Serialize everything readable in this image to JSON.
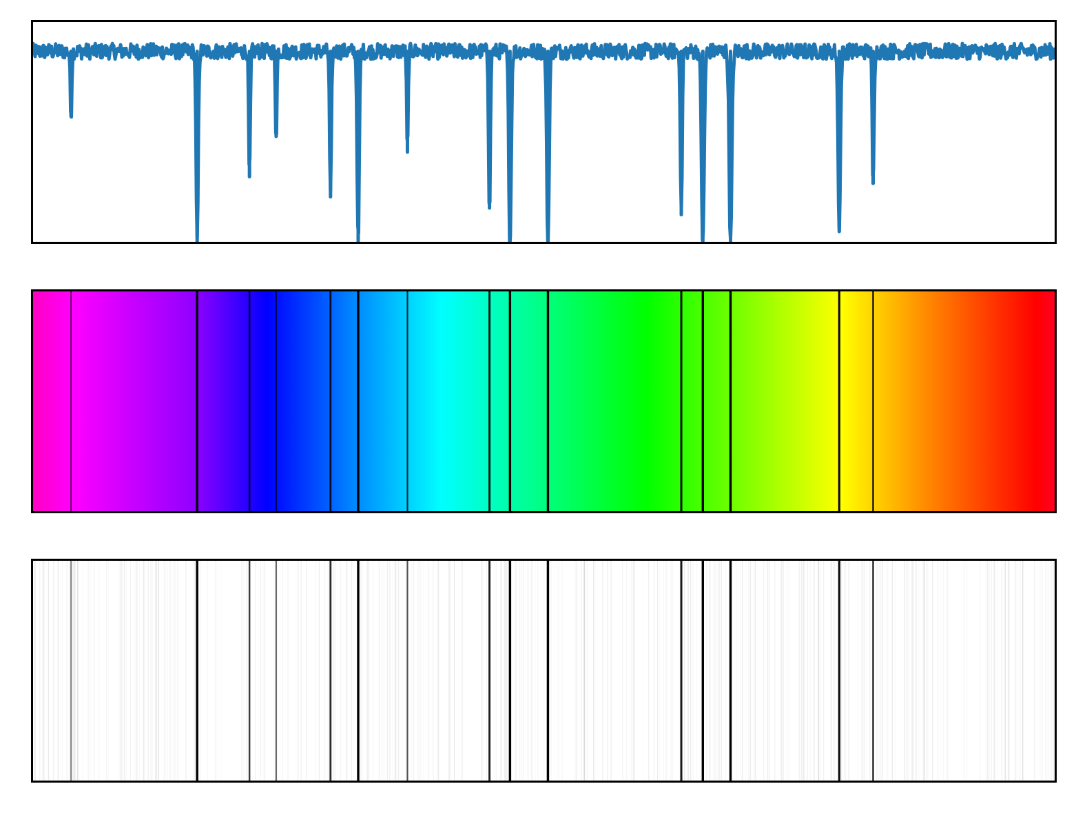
{
  "chart_data": [
    {
      "type": "line",
      "title": "",
      "xlabel": "",
      "ylabel": "",
      "ticks_visible": false,
      "xlim": [
        0,
        1
      ],
      "ylim": [
        0,
        1
      ],
      "baseline": 0.86,
      "noise_amplitude": 0.035,
      "line_color": "#1f77b4",
      "absorption_lines": [
        {
          "x": 0.039,
          "depth": 0.57,
          "width": 0.001
        },
        {
          "x": 0.162,
          "depth": 0.0,
          "width": 0.0014
        },
        {
          "x": 0.213,
          "depth": 0.3,
          "width": 0.0011
        },
        {
          "x": 0.239,
          "depth": 0.48,
          "width": 0.001
        },
        {
          "x": 0.292,
          "depth": 0.21,
          "width": 0.0012
        },
        {
          "x": 0.319,
          "depth": 0.0,
          "width": 0.0014
        },
        {
          "x": 0.367,
          "depth": 0.41,
          "width": 0.001
        },
        {
          "x": 0.447,
          "depth": 0.16,
          "width": 0.0012
        },
        {
          "x": 0.467,
          "depth": 0.0,
          "width": 0.0016
        },
        {
          "x": 0.504,
          "depth": 0.0,
          "width": 0.0016
        },
        {
          "x": 0.634,
          "depth": 0.13,
          "width": 0.0012
        },
        {
          "x": 0.655,
          "depth": 0.0,
          "width": 0.0018
        },
        {
          "x": 0.682,
          "depth": 0.0,
          "width": 0.0018
        },
        {
          "x": 0.788,
          "depth": 0.08,
          "width": 0.0016
        },
        {
          "x": 0.821,
          "depth": 0.27,
          "width": 0.0012
        }
      ]
    },
    {
      "type": "heatmap",
      "title": "",
      "colormap": "gist_rainbow_r",
      "gradient_stops": [
        {
          "offset": 0.0,
          "color": "#ff00bf"
        },
        {
          "offset": 0.04,
          "color": "#ff00ff"
        },
        {
          "offset": 0.16,
          "color": "#9000ff"
        },
        {
          "offset": 0.23,
          "color": "#0000ff"
        },
        {
          "offset": 0.31,
          "color": "#0080ff"
        },
        {
          "offset": 0.4,
          "color": "#00ffff"
        },
        {
          "offset": 0.6,
          "color": "#00ff00"
        },
        {
          "offset": 0.79,
          "color": "#ffff00"
        },
        {
          "offset": 0.88,
          "color": "#ff8000"
        },
        {
          "offset": 0.98,
          "color": "#ff0000"
        },
        {
          "offset": 1.0,
          "color": "#ff0025"
        }
      ],
      "line_color": "#000000"
    },
    {
      "type": "heatmap",
      "title": "",
      "colormap": "gray",
      "background_color": "#ffffff",
      "line_color": "#000000",
      "faint_line_count": 420
    }
  ]
}
